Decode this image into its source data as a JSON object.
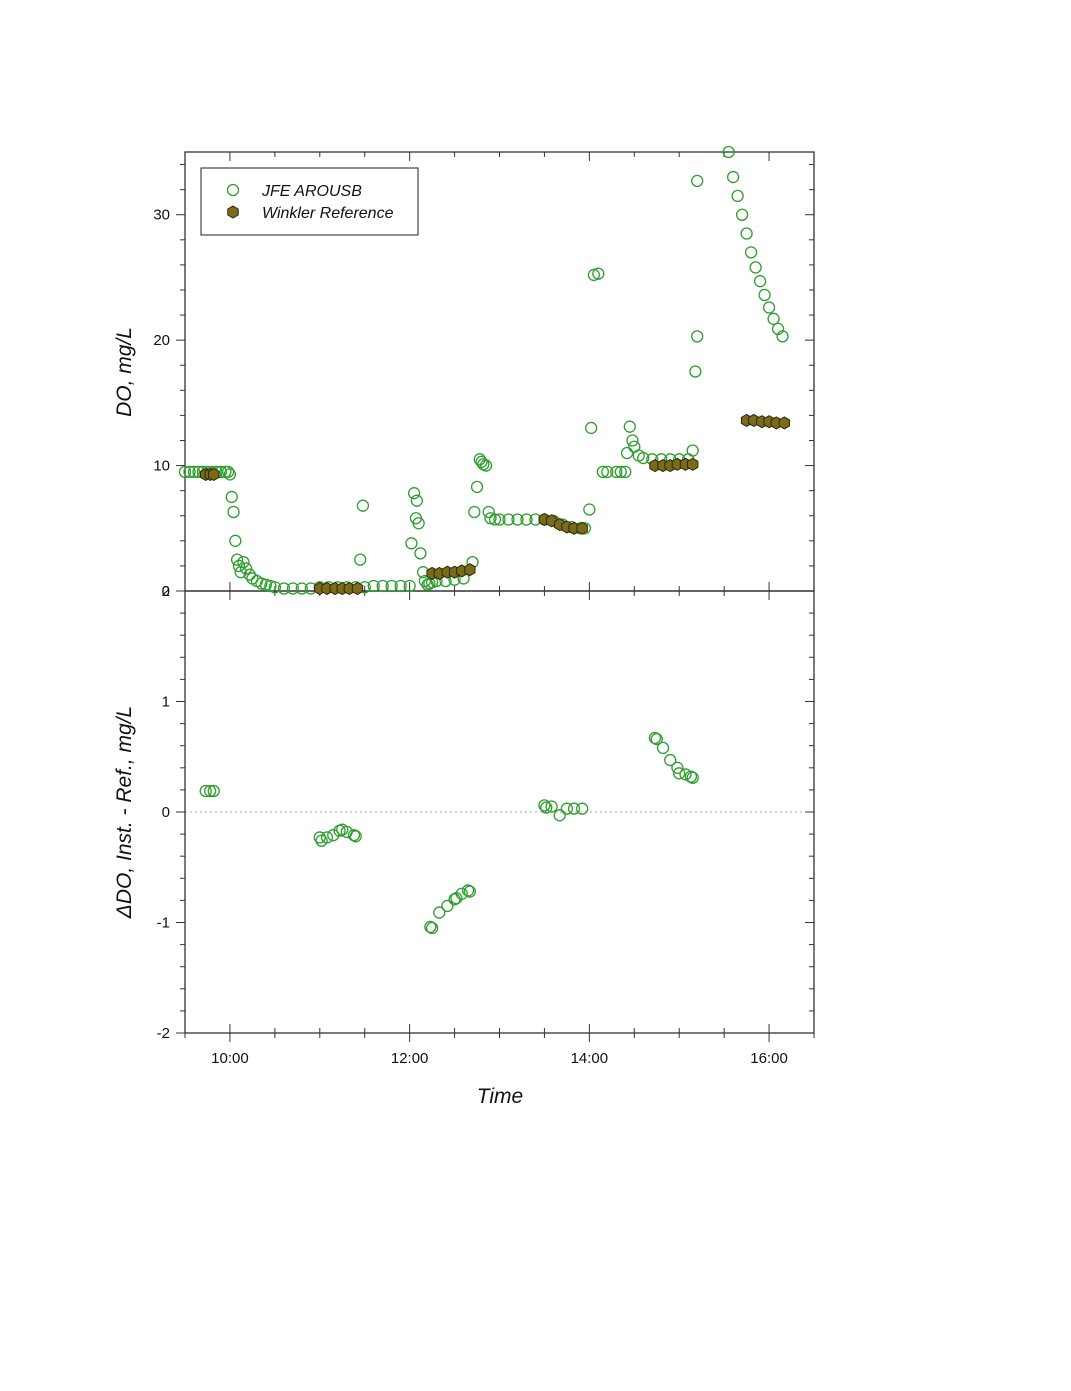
{
  "colors": {
    "instrument": "#2e9e2e",
    "reference_fill": "#7a6a1a",
    "reference_edge": "#2b2a0a",
    "axis": "#333333",
    "zero_line": "#aaaaaa"
  },
  "chart_data": [
    {
      "type": "scatter",
      "panel": "top",
      "ylabel": "DO, mg/L",
      "xlabel": "",
      "xlim": [
        9.5,
        16.5
      ],
      "ylim": [
        0,
        35
      ],
      "xticks": [
        10,
        12,
        14,
        16
      ],
      "xtick_labels": [
        "",
        "",
        "",
        ""
      ],
      "yticks": [
        0,
        10,
        20,
        30
      ],
      "ytick_labels": [
        "0",
        "10",
        "20",
        "30"
      ],
      "legend": {
        "placement": "top-left",
        "entries": [
          "JFE AROUSB",
          "Winkler Reference"
        ]
      },
      "series": [
        {
          "name": "JFE AROUSB",
          "marker": "open-circle",
          "x": [
            9.5,
            9.55,
            9.6,
            9.65,
            9.7,
            9.75,
            9.8,
            9.85,
            9.9,
            9.95,
            9.98,
            10.0,
            10.02,
            10.04,
            10.06,
            10.08,
            10.1,
            10.12,
            10.15,
            10.18,
            10.22,
            10.25,
            10.3,
            10.35,
            10.4,
            10.45,
            10.5,
            10.6,
            10.7,
            10.8,
            10.9,
            11.0,
            11.1,
            11.2,
            11.3,
            11.4,
            11.45,
            11.48,
            11.5,
            11.6,
            11.7,
            11.8,
            11.9,
            12.0,
            12.02,
            12.05,
            12.07,
            12.08,
            12.1,
            12.12,
            12.15,
            12.17,
            12.2,
            12.22,
            12.25,
            12.3,
            12.4,
            12.5,
            12.6,
            12.7,
            12.72,
            12.75,
            12.78,
            12.8,
            12.82,
            12.85,
            12.88,
            12.9,
            12.95,
            13.0,
            13.1,
            13.2,
            13.3,
            13.4,
            13.5,
            13.6,
            13.7,
            13.8,
            13.9,
            13.95,
            14.0,
            14.02,
            14.05,
            14.1,
            14.15,
            14.2,
            14.3,
            14.35,
            14.4,
            14.42,
            14.45,
            14.48,
            14.5,
            14.55,
            14.6,
            14.7,
            14.8,
            14.9,
            15.0,
            15.1,
            15.15,
            15.18,
            15.2,
            15.2,
            15.55,
            15.6,
            15.65,
            15.7,
            15.75,
            15.8,
            15.85,
            15.9,
            15.95,
            16.0,
            16.05,
            16.1,
            16.15
          ],
          "y": [
            9.5,
            9.5,
            9.5,
            9.5,
            9.5,
            9.5,
            9.5,
            9.5,
            9.5,
            9.5,
            9.5,
            9.3,
            7.5,
            6.3,
            4.0,
            2.5,
            2.0,
            1.5,
            2.3,
            1.8,
            1.3,
            1.0,
            0.8,
            0.6,
            0.5,
            0.4,
            0.3,
            0.2,
            0.2,
            0.2,
            0.2,
            0.3,
            0.3,
            0.3,
            0.3,
            0.3,
            2.5,
            6.8,
            0.3,
            0.4,
            0.4,
            0.4,
            0.4,
            0.4,
            3.8,
            7.8,
            5.8,
            7.2,
            5.4,
            3.0,
            1.5,
            0.8,
            0.5,
            0.6,
            0.7,
            0.8,
            0.8,
            0.9,
            1.0,
            2.3,
            6.3,
            8.3,
            10.5,
            10.3,
            10.1,
            10.0,
            6.3,
            5.8,
            5.7,
            5.7,
            5.7,
            5.7,
            5.7,
            5.7,
            5.7,
            5.6,
            5.3,
            5.1,
            5.0,
            5.0,
            6.5,
            13.0,
            25.2,
            25.3,
            9.5,
            9.5,
            9.5,
            9.5,
            9.5,
            11.0,
            13.1,
            12.0,
            11.5,
            10.8,
            10.6,
            10.5,
            10.5,
            10.5,
            10.5,
            10.5,
            11.2,
            17.5,
            32.7,
            20.3,
            35.0,
            33.0,
            31.5,
            30.0,
            28.5,
            27.0,
            25.8,
            24.7,
            23.6,
            22.6,
            21.7,
            20.9,
            20.3
          ]
        },
        {
          "name": "Winkler Reference",
          "marker": "filled-hexagon",
          "x": [
            9.73,
            9.78,
            9.82,
            11.0,
            11.08,
            11.17,
            11.25,
            11.33,
            11.42,
            12.25,
            12.33,
            12.42,
            12.5,
            12.58,
            12.67,
            13.5,
            13.58,
            13.67,
            13.75,
            13.83,
            13.92,
            14.73,
            14.82,
            14.9,
            14.98,
            15.07,
            15.15,
            15.75,
            15.83,
            15.92,
            16.0,
            16.08,
            16.17
          ],
          "y": [
            9.3,
            9.3,
            9.3,
            0.2,
            0.2,
            0.2,
            0.2,
            0.2,
            0.2,
            1.4,
            1.4,
            1.5,
            1.5,
            1.6,
            1.7,
            5.7,
            5.6,
            5.3,
            5.1,
            5.0,
            5.0,
            10.0,
            10.0,
            10.0,
            10.1,
            10.1,
            10.1,
            13.6,
            13.6,
            13.5,
            13.5,
            13.4,
            13.4
          ]
        }
      ]
    },
    {
      "type": "scatter",
      "panel": "bottom",
      "xlabel": "Time",
      "ylabel": "ΔDO, Inst. - Ref., mg/L",
      "xlim": [
        9.5,
        16.5
      ],
      "ylim": [
        -2,
        2
      ],
      "xticks": [
        10,
        12,
        14,
        16
      ],
      "xtick_labels": [
        "10:00",
        "12:00",
        "14:00",
        "16:00"
      ],
      "yticks": [
        -2,
        -1,
        0,
        1,
        2
      ],
      "ytick_labels": [
        "-2",
        "-1",
        "0",
        "1",
        "2"
      ],
      "zero_line": true,
      "series": [
        {
          "marker": "open-circle",
          "x": [
            9.73,
            9.78,
            9.82,
            11.0,
            11.02,
            11.08,
            11.15,
            11.22,
            11.25,
            11.3,
            11.38,
            11.4,
            12.23,
            12.25,
            12.33,
            12.42,
            12.5,
            12.52,
            12.58,
            12.65,
            12.67,
            13.5,
            13.52,
            13.58,
            13.67,
            13.75,
            13.83,
            13.92,
            14.73,
            14.75,
            14.82,
            14.9,
            14.98,
            15.0,
            15.07,
            15.13,
            15.15
          ],
          "y": [
            0.19,
            0.19,
            0.19,
            -0.23,
            -0.26,
            -0.23,
            -0.21,
            -0.17,
            -0.16,
            -0.18,
            -0.21,
            -0.22,
            -1.04,
            -1.05,
            -0.91,
            -0.85,
            -0.79,
            -0.78,
            -0.74,
            -0.71,
            -0.72,
            0.06,
            0.04,
            0.05,
            -0.03,
            0.03,
            0.03,
            0.03,
            0.67,
            0.66,
            0.58,
            0.47,
            0.4,
            0.35,
            0.34,
            0.32,
            0.31
          ]
        }
      ]
    }
  ]
}
